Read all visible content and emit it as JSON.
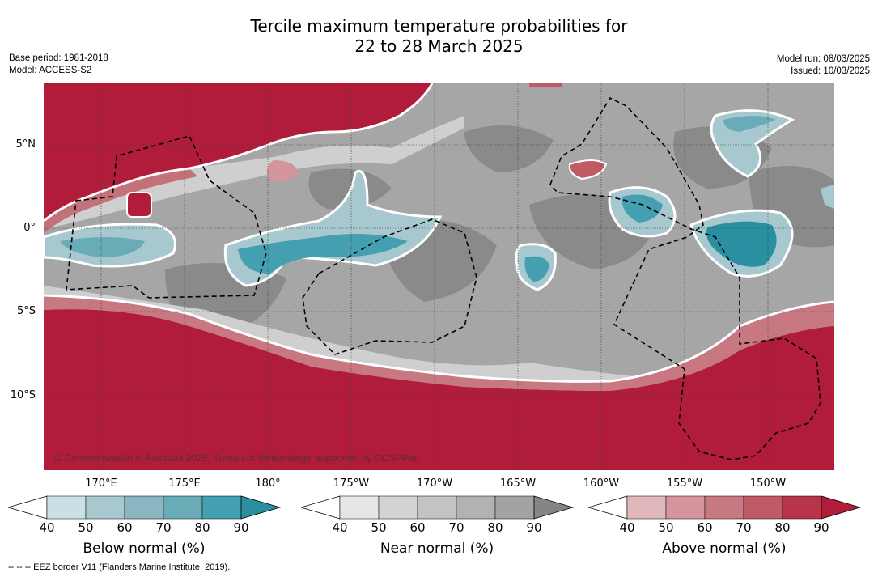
{
  "title_line1": "Tercile maximum temperature probabilities for",
  "title_line2": "22 to 28 March 2025",
  "base_period": "Base period: 1981-2018",
  "model": "Model: ACCESS-S2",
  "model_run": "Model run: 08/03/2025",
  "issued": "Issued: 10/03/2025",
  "lat_labels": [
    "5°N",
    "0°",
    "5°S",
    "10°S"
  ],
  "lon_labels": [
    "170°E",
    "175°E",
    "180°",
    "175°W",
    "170°W",
    "165°W",
    "160°W",
    "155°W",
    "150°W"
  ],
  "copyright": "© Commonwealth of Australia 2025, Bureau of Meteorology, supported by COSPPac",
  "colorbars": [
    {
      "title": "Below normal (%)",
      "ticks": [
        "40",
        "50",
        "60",
        "70",
        "80",
        "90"
      ],
      "colors": [
        "#ffffff",
        "#c8e0e6",
        "#a7c8ce",
        "#8bb5c0",
        "#6aabb8",
        "#44a0b0",
        "#2a8fa0"
      ]
    },
    {
      "title": "Near normal (%)",
      "ticks": [
        "40",
        "50",
        "60",
        "70",
        "80",
        "90"
      ],
      "colors": [
        "#ffffff",
        "#e6e6e6",
        "#d3d3d3",
        "#c3c3c3",
        "#b2b2b2",
        "#a3a3a3",
        "#858585"
      ]
    },
    {
      "title": "Above normal (%)",
      "ticks": [
        "40",
        "50",
        "60",
        "70",
        "80",
        "90"
      ],
      "colors": [
        "#ffffff",
        "#e0b8bc",
        "#d4969c",
        "#c87880",
        "#c05a64",
        "#b93448",
        "#b01c3a"
      ]
    }
  ],
  "footnote": "-- -- -- EEZ border V11 (Flanders Marine Institute, 2019)."
}
